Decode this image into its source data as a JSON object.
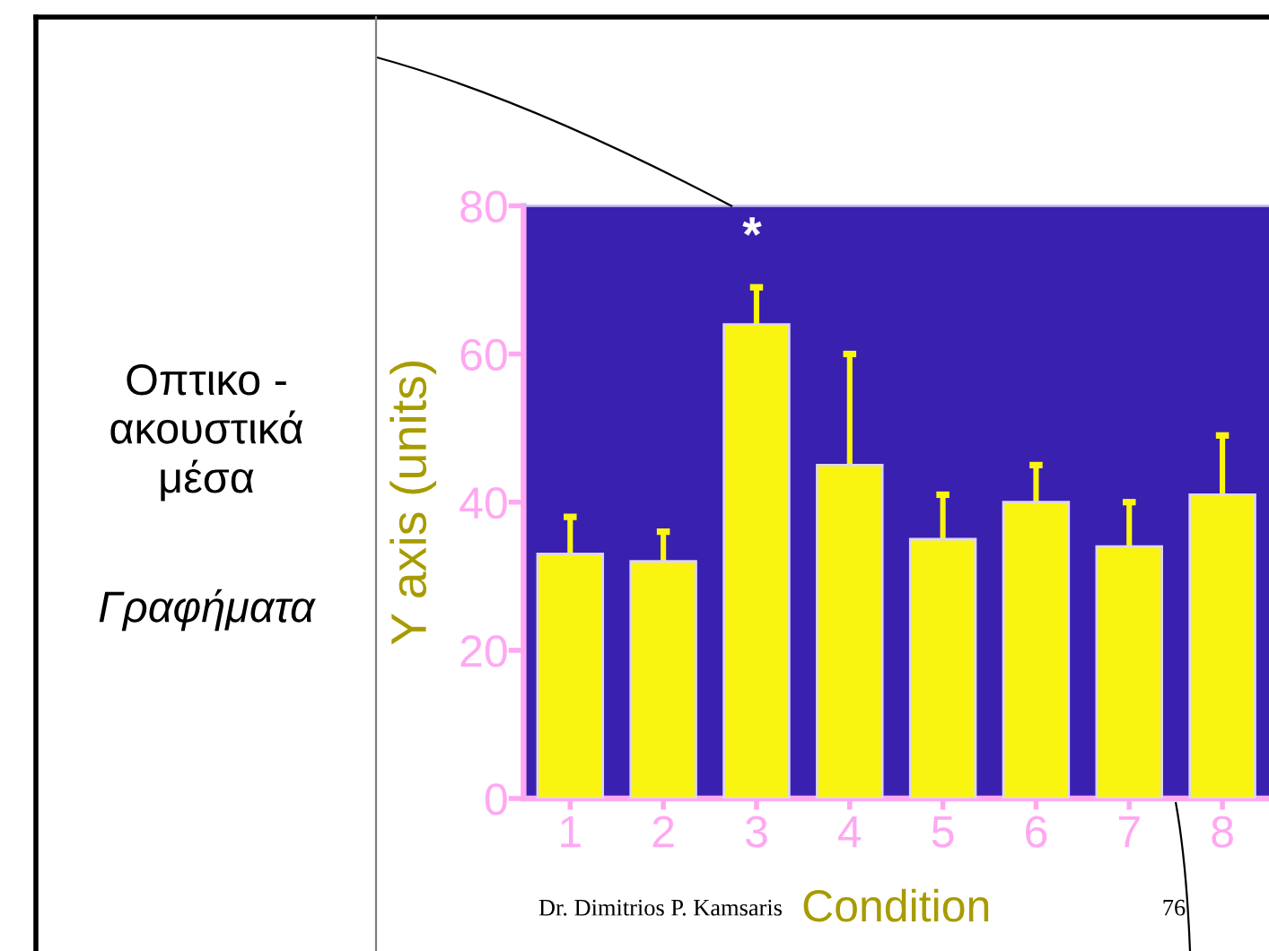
{
  "chart_data": {
    "type": "bar",
    "title": "Οπτικο - ακουστικά μέσα",
    "subtitle": "Γραφήματα",
    "xlabel": "Condition",
    "ylabel": "Y axis (units)",
    "categories": [
      "1",
      "2",
      "3",
      "4",
      "5",
      "6",
      "7",
      "8"
    ],
    "values": [
      33,
      32,
      64,
      45,
      35,
      40,
      34,
      41
    ],
    "color": "#faf510",
    "errors": [
      [
        33,
        38
      ],
      [
        32,
        36
      ],
      [
        64,
        69
      ],
      [
        45,
        60
      ],
      [
        35,
        41
      ],
      [
        40,
        45
      ],
      [
        34,
        40
      ],
      [
        41,
        49
      ]
    ],
    "ylim": [
      0,
      80
    ],
    "yticks": [
      0,
      20,
      40,
      60,
      80
    ],
    "annotations": [
      "*",
      "Dr. Dimitrios P. Kamsaris",
      "76"
    ]
  }
}
